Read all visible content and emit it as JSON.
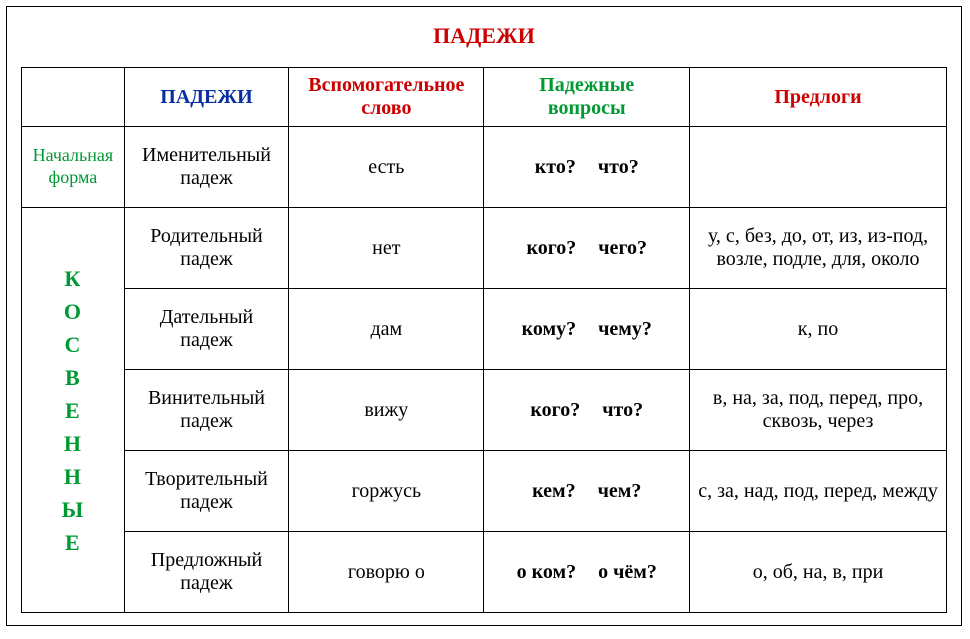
{
  "colors": {
    "red": "#cc0000",
    "blue": "#0a2fa0",
    "green": "#009933",
    "black": "#000000"
  },
  "title": "ПАДЕЖИ",
  "headers": {
    "col1": "ПАДЕЖИ",
    "col2_l1": "Вспомогательное",
    "col2_l2": "слово",
    "col3_l1": "Падежные",
    "col3_l2": "вопросы",
    "col4": "Предлоги"
  },
  "initial_l1": "Начальная",
  "initial_l2": "форма",
  "oblique_letters": [
    "К",
    "О",
    "С",
    "В",
    "Е",
    "Н",
    "Н",
    "Ы",
    "Е"
  ],
  "rows": [
    {
      "case_l1": "Именительный",
      "case_l2": "падеж",
      "aux": "есть",
      "q1": "кто?",
      "q2": "что?",
      "prep": ""
    },
    {
      "case_l1": "Родительный",
      "case_l2": "падеж",
      "aux": "нет",
      "q1": "кого?",
      "q2": "чего?",
      "prep": "у, с, без, до, от, из, из-под, возле, подле, для, около"
    },
    {
      "case_l1": "Дательный",
      "case_l2": "падеж",
      "aux": "дам",
      "q1": "кому?",
      "q2": "чему?",
      "prep": "к, по"
    },
    {
      "case_l1": "Винительный",
      "case_l2": "падеж",
      "aux": "вижу",
      "q1": "кого?",
      "q2": "что?",
      "prep": "в, на, за, под, перед, про, сквозь, через"
    },
    {
      "case_l1": "Творительный",
      "case_l2": "падеж",
      "aux": "горжусь",
      "q1": "кем?",
      "q2": "чем?",
      "prep": "с, за, над, под, перед, между"
    },
    {
      "case_l1": "Предложный",
      "case_l2": "падеж",
      "aux": "говорю о",
      "q1": "о ком?",
      "q2": "о чём?",
      "prep": "о, об, на, в, при"
    }
  ]
}
